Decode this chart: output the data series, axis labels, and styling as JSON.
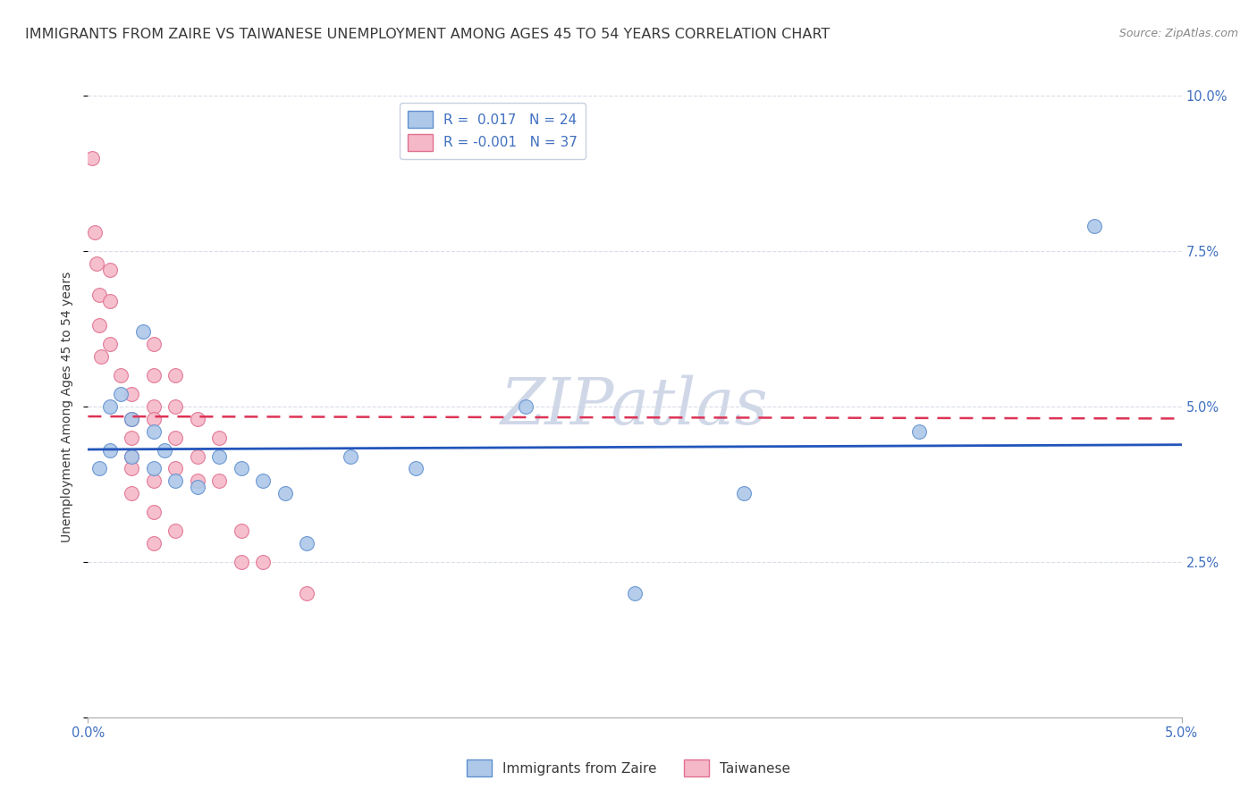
{
  "title": "IMMIGRANTS FROM ZAIRE VS TAIWANESE UNEMPLOYMENT AMONG AGES 45 TO 54 YEARS CORRELATION CHART",
  "source": "Source: ZipAtlas.com",
  "ylabel": "Unemployment Among Ages 45 to 54 years",
  "legend_label_blue": "Immigrants from Zaire",
  "legend_label_pink": "Taiwanese",
  "r_blue": 0.017,
  "n_blue": 24,
  "r_pink": -0.001,
  "n_pink": 37,
  "xlim": [
    0.0,
    0.05
  ],
  "ylim": [
    0.0,
    0.1
  ],
  "xticks": [
    0.0,
    0.05
  ],
  "xtick_labels": [
    "0.0%",
    "5.0%"
  ],
  "yticks": [
    0.0,
    0.025,
    0.05,
    0.075,
    0.1
  ],
  "ytick_labels_right": [
    "",
    "2.5%",
    "5.0%",
    "7.5%",
    "10.0%"
  ],
  "blue_fill_color": "#adc8e8",
  "pink_fill_color": "#f5b8c8",
  "blue_edge_color": "#6090d0",
  "pink_edge_color": "#e07090",
  "blue_line_color": "#2255bb",
  "pink_line_color": "#dd3355",
  "text_color": "#3a3a3a",
  "tick_color": "#4070c0",
  "grid_color": "#d8dde8",
  "background_color": "#ffffff",
  "watermark_color": "#d0d8e8",
  "watermark_text": "ZIPatlas",
  "title_fontsize": 11.5,
  "source_fontsize": 9,
  "axis_label_fontsize": 10,
  "tick_fontsize": 10.5,
  "legend_fontsize": 11,
  "blue_scatter_x": [
    0.0005,
    0.001,
    0.001,
    0.0015,
    0.002,
    0.002,
    0.0025,
    0.003,
    0.003,
    0.0035,
    0.004,
    0.005,
    0.006,
    0.007,
    0.008,
    0.009,
    0.01,
    0.012,
    0.015,
    0.02,
    0.025,
    0.03,
    0.038,
    0.046
  ],
  "blue_scatter_y": [
    0.04,
    0.05,
    0.043,
    0.052,
    0.048,
    0.042,
    0.062,
    0.046,
    0.04,
    0.043,
    0.038,
    0.037,
    0.042,
    0.04,
    0.038,
    0.036,
    0.028,
    0.042,
    0.04,
    0.05,
    0.02,
    0.036,
    0.046,
    0.079
  ],
  "pink_scatter_x": [
    0.0002,
    0.0003,
    0.0004,
    0.0005,
    0.0005,
    0.0006,
    0.001,
    0.001,
    0.001,
    0.0015,
    0.002,
    0.002,
    0.002,
    0.002,
    0.002,
    0.002,
    0.003,
    0.003,
    0.003,
    0.003,
    0.003,
    0.003,
    0.003,
    0.004,
    0.004,
    0.004,
    0.004,
    0.004,
    0.005,
    0.005,
    0.005,
    0.006,
    0.006,
    0.007,
    0.007,
    0.008,
    0.01
  ],
  "pink_scatter_y": [
    0.09,
    0.078,
    0.073,
    0.068,
    0.063,
    0.058,
    0.072,
    0.067,
    0.06,
    0.055,
    0.052,
    0.048,
    0.045,
    0.042,
    0.04,
    0.036,
    0.06,
    0.055,
    0.05,
    0.048,
    0.038,
    0.033,
    0.028,
    0.055,
    0.05,
    0.045,
    0.04,
    0.03,
    0.048,
    0.042,
    0.038,
    0.045,
    0.038,
    0.03,
    0.025,
    0.025,
    0.02
  ],
  "blue_trend_y_start": 0.041,
  "blue_trend_y_end": 0.043,
  "pink_trend_y_start": 0.044,
  "pink_trend_y_end": 0.044,
  "marker_size": 130
}
